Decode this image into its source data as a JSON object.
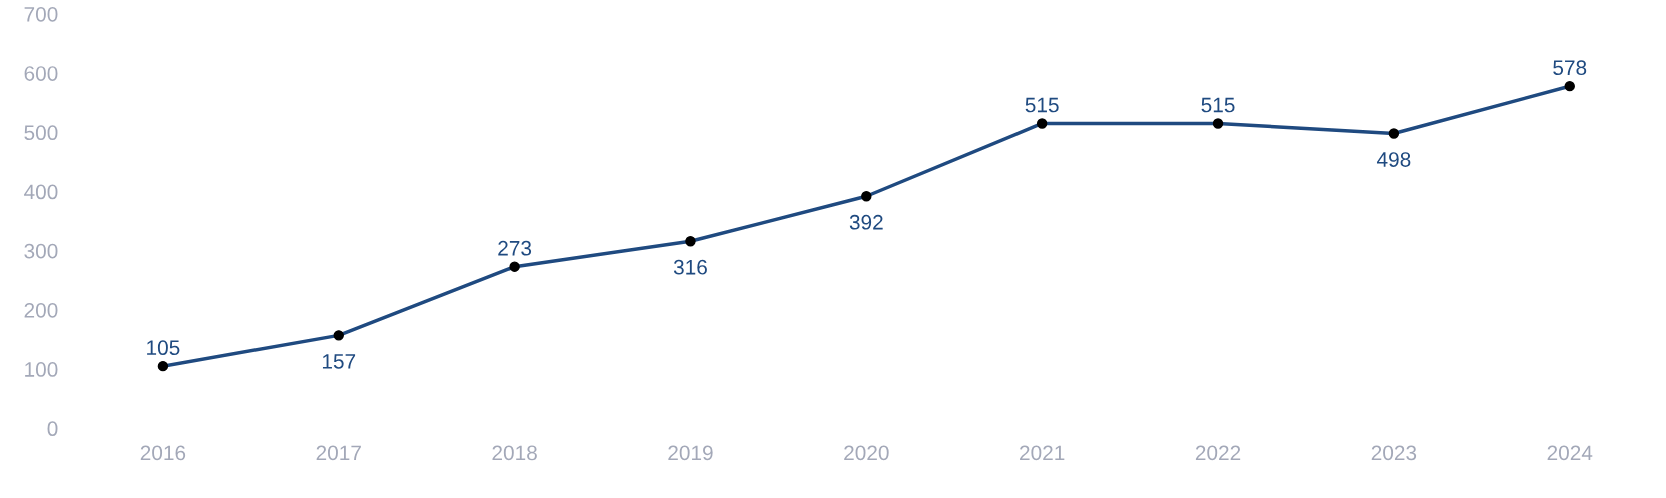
{
  "chart_data": {
    "type": "line",
    "categories": [
      "2016",
      "2017",
      "2018",
      "2019",
      "2020",
      "2021",
      "2022",
      "2023",
      "2024"
    ],
    "series": [
      {
        "color": "#1f4a80",
        "values": [
          105,
          157,
          273,
          316,
          392,
          515,
          515,
          498,
          578
        ]
      }
    ],
    "ylim": [
      0,
      700
    ],
    "yticks": [
      0,
      100,
      200,
      300,
      400,
      500,
      600,
      700
    ],
    "grid": false,
    "legend": false,
    "marker": "circle",
    "line_style": "solid",
    "data_labels": true
  }
}
